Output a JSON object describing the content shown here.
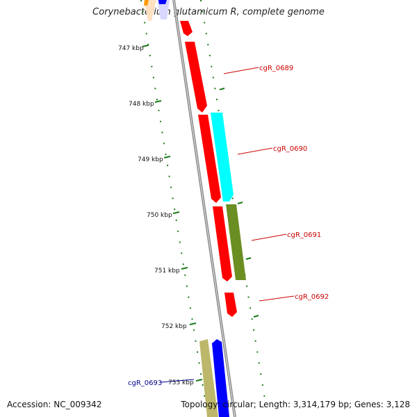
{
  "title": "Corynebacterium glutamicum R, complete genome",
  "accession_text": "Accession: NC_009342",
  "summary_text": "Topology: circular; Length: 3,314,179 bp; Genes: 3,128",
  "ticks": [
    "747 kbp",
    "748 kbp",
    "749 kbp",
    "750 kbp",
    "751 kbp",
    "752 kbp",
    "753 kbp"
  ],
  "genes": [
    {
      "label": "cgR_0689",
      "color": "#ff0000",
      "strand": "reverse"
    },
    {
      "label": "cgR_0690",
      "color": "#00ffff",
      "strand": "forward"
    },
    {
      "label": "cgR_0691",
      "color": "#6b8e23",
      "strand": "forward"
    },
    {
      "label": "cgR_0692",
      "color": "#ff0000",
      "strand": "reverse"
    },
    {
      "label": "cgR_0693",
      "color": "#0000ff",
      "strand": "forward"
    }
  ],
  "colors": {
    "backbone": "#8c8c8c",
    "tick_marks": "#1a7a1a",
    "label_red": "#cc0000",
    "label_blue": "#00008b",
    "khaki": "#bdb76b"
  }
}
